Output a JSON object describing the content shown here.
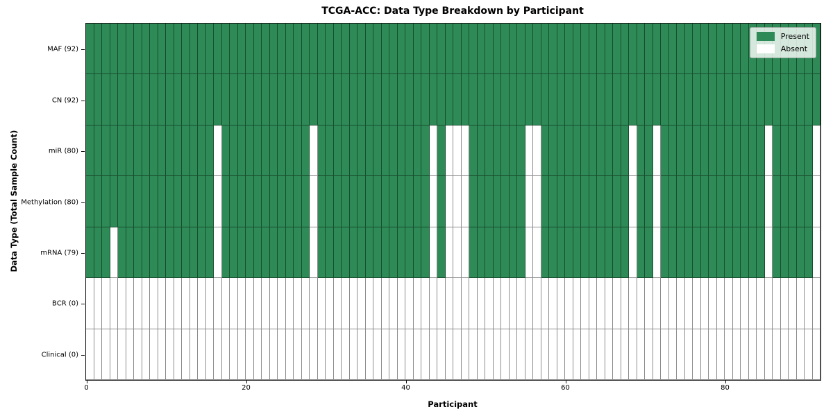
{
  "figure": {
    "title": "TCGA-ACC: Data Type Breakdown by Participant",
    "xlabel": "Participant",
    "ylabel": "Data Type (Total Sample Count)"
  },
  "legend": {
    "items": [
      {
        "label": "Present",
        "color": "#2E8B57"
      },
      {
        "label": "Absent",
        "color": "#FFFFFF"
      }
    ]
  },
  "chart_data": {
    "type": "heatmap",
    "title": "TCGA-ACC: Data Type Breakdown by Participant",
    "xlabel": "Participant",
    "ylabel": "Data Type (Total Sample Count)",
    "legend": [
      "Present",
      "Absent"
    ],
    "legend_position": "upper right",
    "grid": "cell-borders",
    "n_participants": 92,
    "x_range": [
      0,
      92
    ],
    "x_ticks": [
      0,
      20,
      40,
      60,
      80
    ],
    "value_colors": {
      "present": "#2E8B57",
      "absent": "#FFFFFF",
      "cell_border": "rgba(0,0,0,0.45)"
    },
    "rows": [
      {
        "label": "MAF (92)",
        "data_type": "MAF",
        "total": 92,
        "absent_participants": []
      },
      {
        "label": "CN (92)",
        "data_type": "CN",
        "total": 92,
        "absent_participants": []
      },
      {
        "label": "miR (80)",
        "data_type": "miR",
        "total": 80,
        "absent_participants": [
          16,
          28,
          43,
          45,
          46,
          47,
          55,
          56,
          68,
          71,
          85,
          91
        ]
      },
      {
        "label": "Methylation (80)",
        "data_type": "Methylation",
        "total": 80,
        "absent_participants": [
          16,
          28,
          43,
          45,
          46,
          47,
          55,
          56,
          68,
          71,
          85,
          91
        ]
      },
      {
        "label": "mRNA (79)",
        "data_type": "mRNA",
        "total": 79,
        "absent_participants": [
          3,
          16,
          28,
          43,
          45,
          46,
          47,
          55,
          56,
          68,
          71,
          85,
          91
        ]
      },
      {
        "label": "BCR (0)",
        "data_type": "BCR",
        "total": 0,
        "absent_participants": "all"
      },
      {
        "label": "Clinical (0)",
        "data_type": "Clinical",
        "total": 0,
        "absent_participants": "all"
      }
    ]
  }
}
